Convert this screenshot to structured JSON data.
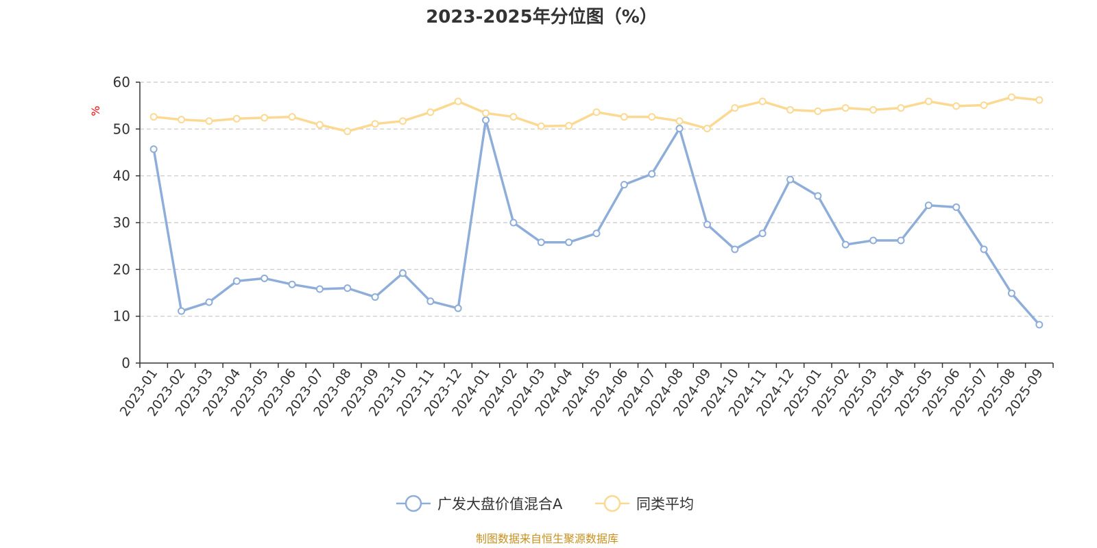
{
  "chart_data": {
    "type": "line",
    "title": "2023-2025年分位图（%）",
    "ylabel": "%",
    "ylim": [
      0,
      60
    ],
    "yticks": [
      "0",
      "10",
      "20",
      "30",
      "40",
      "50",
      "60"
    ],
    "grid": true,
    "legend_position": "bottom-center",
    "categories": [
      "2023-01",
      "2023-02",
      "2023-03",
      "2023-04",
      "2023-05",
      "2023-06",
      "2023-07",
      "2023-08",
      "2023-09",
      "2023-10",
      "2023-11",
      "2023-12",
      "2024-01",
      "2024-02",
      "2024-03",
      "2024-04",
      "2024-05",
      "2024-06",
      "2024-07",
      "2024-08",
      "2024-09",
      "2024-10",
      "2024-11",
      "2024-12",
      "2025-01",
      "2025-02",
      "2025-03",
      "2025-04",
      "2025-05",
      "2025-06",
      "2025-07",
      "2025-08",
      "2025-09"
    ],
    "series": [
      {
        "name": "广发大盘价值混合A",
        "color": "#8eaed9",
        "values": [
          45.7,
          11.1,
          13.0,
          17.5,
          18.1,
          16.8,
          15.8,
          16.0,
          14.1,
          19.2,
          13.2,
          11.7,
          51.9,
          30.0,
          25.8,
          25.8,
          27.7,
          38.1,
          40.4,
          50.1,
          29.6,
          24.3,
          27.7,
          39.2,
          35.7,
          25.3,
          26.2,
          26.2,
          33.7,
          33.3,
          24.3,
          14.9,
          8.2
        ]
      },
      {
        "name": "同类平均",
        "color": "#fbd992",
        "values": [
          52.6,
          52.0,
          51.7,
          52.2,
          52.4,
          52.6,
          50.9,
          49.5,
          51.1,
          51.7,
          53.6,
          55.9,
          53.4,
          52.6,
          50.6,
          50.7,
          53.6,
          52.6,
          52.6,
          51.7,
          50.1,
          54.5,
          55.9,
          54.1,
          53.8,
          54.5,
          54.1,
          54.5,
          55.9,
          54.9,
          55.1,
          56.8,
          56.2
        ]
      }
    ],
    "source": "制图数据来自恒生聚源数据库"
  }
}
